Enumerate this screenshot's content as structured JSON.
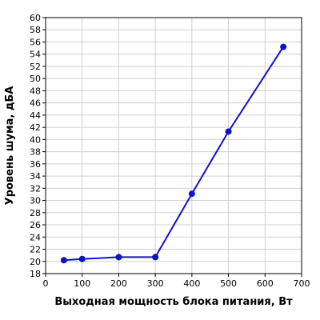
{
  "chart_data": {
    "type": "line",
    "title": "",
    "xlabel": "Выходная мощность блока питания, Вт",
    "ylabel": "Уровень шума, дБА",
    "xlim": [
      0,
      700
    ],
    "ylim": [
      18,
      60
    ],
    "x_ticks": [
      0,
      100,
      200,
      300,
      400,
      500,
      600,
      700
    ],
    "y_ticks": [
      18,
      20,
      22,
      24,
      26,
      28,
      30,
      32,
      34,
      36,
      38,
      40,
      42,
      44,
      46,
      48,
      50,
      52,
      54,
      56,
      58,
      60
    ],
    "grid": true,
    "legend": "none",
    "series": [
      {
        "color": "#1010d0",
        "points": [
          {
            "x": 50,
            "y": 20.2
          },
          {
            "x": 100,
            "y": 20.4
          },
          {
            "x": 200,
            "y": 20.7
          },
          {
            "x": 300,
            "y": 20.7
          },
          {
            "x": 400,
            "y": 31.1
          },
          {
            "x": 500,
            "y": 41.3
          },
          {
            "x": 650,
            "y": 55.2
          }
        ]
      }
    ]
  }
}
